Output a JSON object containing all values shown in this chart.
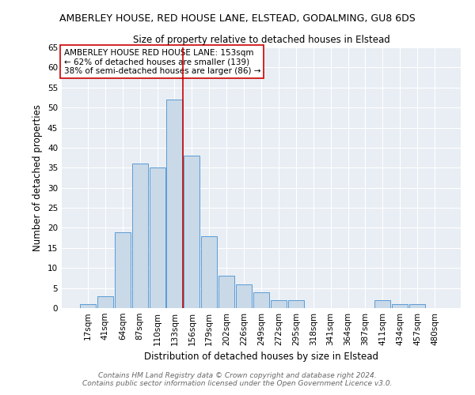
{
  "title": "AMBERLEY HOUSE, RED HOUSE LANE, ELSTEAD, GODALMING, GU8 6DS",
  "subtitle": "Size of property relative to detached houses in Elstead",
  "xlabel": "Distribution of detached houses by size in Elstead",
  "ylabel": "Number of detached properties",
  "bin_labels": [
    "17sqm",
    "41sqm",
    "64sqm",
    "87sqm",
    "110sqm",
    "133sqm",
    "156sqm",
    "179sqm",
    "202sqm",
    "226sqm",
    "249sqm",
    "272sqm",
    "295sqm",
    "318sqm",
    "341sqm",
    "364sqm",
    "387sqm",
    "411sqm",
    "434sqm",
    "457sqm",
    "480sqm"
  ],
  "bar_heights": [
    1,
    3,
    19,
    36,
    35,
    52,
    38,
    18,
    8,
    6,
    4,
    2,
    2,
    0,
    0,
    0,
    0,
    2,
    1,
    1,
    0
  ],
  "bar_color": "#c9d9e8",
  "bar_edge_color": "#5b9bd5",
  "vline_color": "#cc0000",
  "ylim": [
    0,
    65
  ],
  "yticks": [
    0,
    5,
    10,
    15,
    20,
    25,
    30,
    35,
    40,
    45,
    50,
    55,
    60,
    65
  ],
  "annotation_text": "AMBERLEY HOUSE RED HOUSE LANE: 153sqm\n← 62% of detached houses are smaller (139)\n38% of semi-detached houses are larger (86) →",
  "annotation_box_color": "#ffffff",
  "annotation_box_edge": "#cc0000",
  "footer1": "Contains HM Land Registry data © Crown copyright and database right 2024.",
  "footer2": "Contains public sector information licensed under the Open Government Licence v3.0.",
  "plot_bg_color": "#e8eef4",
  "title_fontsize": 9,
  "subtitle_fontsize": 8.5,
  "axis_label_fontsize": 8.5,
  "tick_fontsize": 7.5,
  "annotation_fontsize": 7.5,
  "footer_fontsize": 6.5
}
